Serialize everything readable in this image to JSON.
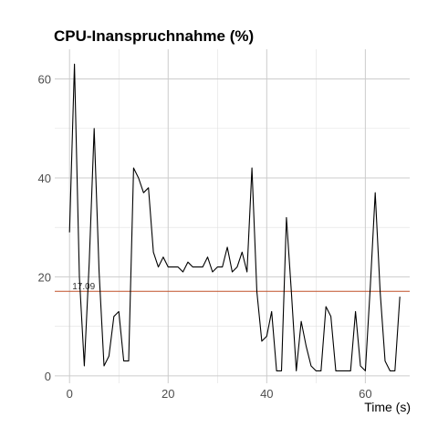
{
  "chart_data": {
    "type": "line",
    "title": "CPU-Inanspruchnahme (%)",
    "xlabel": "Time (s)",
    "ylabel": "",
    "xlim": [
      -3,
      69
    ],
    "ylim": [
      -1.5,
      66
    ],
    "x_ticks": [
      0,
      20,
      40,
      60
    ],
    "y_ticks": [
      0,
      20,
      40,
      60
    ],
    "grid": true,
    "legend": "none",
    "reference_line": {
      "value": 17.09,
      "label": "17.09",
      "color": "#c0502a"
    },
    "series": [
      {
        "color": "#000000",
        "x": [
          0,
          1,
          2,
          3,
          4,
          5,
          6,
          7,
          8,
          9,
          10,
          11,
          12,
          13,
          14,
          15,
          16,
          17,
          18,
          19,
          20,
          21,
          22,
          23,
          24,
          25,
          26,
          27,
          28,
          29,
          30,
          31,
          32,
          33,
          34,
          35,
          36,
          37,
          38,
          39,
          40,
          41,
          42,
          43,
          44,
          45,
          46,
          47,
          48,
          49,
          50,
          51,
          52,
          53,
          54,
          55,
          56,
          57,
          58,
          59,
          60,
          61,
          62,
          63,
          64,
          65,
          66,
          67
        ],
        "values": [
          29,
          63,
          20,
          2,
          23,
          50,
          21,
          2,
          4,
          12,
          13,
          3,
          3,
          42,
          40,
          37,
          38,
          25,
          22,
          24,
          22,
          22,
          22,
          21,
          23,
          22,
          22,
          22,
          24,
          21,
          22,
          22,
          26,
          21,
          22,
          25,
          21,
          42,
          17,
          7,
          8,
          13,
          1,
          1,
          32,
          17,
          1,
          11,
          6,
          2,
          1,
          1,
          14,
          12,
          1,
          1,
          1,
          1,
          13,
          2,
          1,
          18,
          37,
          17,
          3,
          1,
          1,
          16
        ]
      }
    ]
  }
}
